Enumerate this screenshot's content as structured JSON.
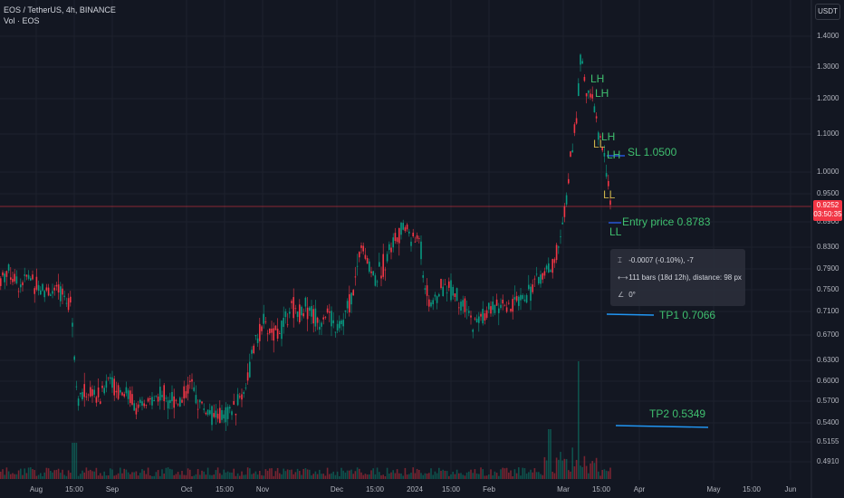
{
  "header": {
    "symbol_line": "EOS / TetherUS, 4h, BINANCE",
    "volume_line": "Vol · EOS",
    "currency_button": "USDT"
  },
  "price_tag": {
    "price": "0.9252",
    "countdown": "03:50:35"
  },
  "annotations": {
    "lh1": "LH",
    "lh2": "LH",
    "lh3": "LH",
    "lh4": "LH",
    "ll1": "LL",
    "ll2": "LL",
    "ll3": "LL",
    "sl": "SL 1.0500",
    "entry": "Entry price 0.8783",
    "tp1": "TP1 0.7066",
    "tp2": "TP2 0.5349"
  },
  "measure_tooltip": {
    "price_change": "-0.0007 (-0.10%), -7",
    "bars": "111 bars (18d 12h), distance: 98 px",
    "angle": "0°"
  },
  "chart_data": {
    "type": "candlestick",
    "symbol": "EOS / TetherUS",
    "interval": "4h",
    "exchange": "BINANCE",
    "y_axis_ticks": [
      "1.4000",
      "1.3000",
      "1.2000",
      "1.1000",
      "1.0000",
      "0.9500",
      "0.8900",
      "0.8300",
      "0.7900",
      "0.7500",
      "0.7100",
      "0.6700",
      "0.6300",
      "0.6000",
      "0.5700",
      "0.5400",
      "0.5155",
      "0.4910"
    ],
    "x_axis_ticks": [
      "Aug",
      "15:00",
      "Sep",
      "Oct",
      "15:00",
      "Nov",
      "Dec",
      "15:00",
      "2024",
      "15:00",
      "Feb",
      "Mar",
      "15:00",
      "Apr",
      "May",
      "15:00",
      "Jun"
    ],
    "current_price": 0.9252,
    "levels": [
      {
        "name": "SL",
        "value": 1.05
      },
      {
        "name": "Entry price",
        "value": 0.8783
      },
      {
        "name": "TP1",
        "value": 0.7066
      },
      {
        "name": "TP2",
        "value": 0.5349
      }
    ],
    "price_path": [
      [
        0,
        0.77
      ],
      [
        8,
        0.79
      ],
      [
        20,
        0.76
      ],
      [
        30,
        0.775
      ],
      [
        40,
        0.76
      ],
      [
        50,
        0.75
      ],
      [
        60,
        0.745
      ],
      [
        70,
        0.74
      ],
      [
        78,
        0.73
      ],
      [
        82,
        0.62
      ],
      [
        86,
        0.575
      ],
      [
        92,
        0.58
      ],
      [
        100,
        0.585
      ],
      [
        110,
        0.575
      ],
      [
        120,
        0.61
      ],
      [
        126,
        0.59
      ],
      [
        135,
        0.585
      ],
      [
        145,
        0.575
      ],
      [
        155,
        0.555
      ],
      [
        160,
        0.565
      ],
      [
        170,
        0.575
      ],
      [
        180,
        0.58
      ],
      [
        190,
        0.575
      ],
      [
        200,
        0.57
      ],
      [
        210,
        0.6
      ],
      [
        215,
        0.575
      ],
      [
        225,
        0.56
      ],
      [
        235,
        0.55
      ],
      [
        245,
        0.548
      ],
      [
        258,
        0.56
      ],
      [
        270,
        0.59
      ],
      [
        280,
        0.65
      ],
      [
        290,
        0.69
      ],
      [
        300,
        0.67
      ],
      [
        310,
        0.68
      ],
      [
        320,
        0.72
      ],
      [
        330,
        0.71
      ],
      [
        340,
        0.72
      ],
      [
        350,
        0.69
      ],
      [
        360,
        0.71
      ],
      [
        370,
        0.68
      ],
      [
        380,
        0.7
      ],
      [
        390,
        0.75
      ],
      [
        398,
        0.84
      ],
      [
        405,
        0.8
      ],
      [
        415,
        0.77
      ],
      [
        425,
        0.81
      ],
      [
        432,
        0.84
      ],
      [
        440,
        0.86
      ],
      [
        448,
        0.88
      ],
      [
        455,
        0.84
      ],
      [
        462,
        0.86
      ],
      [
        466,
        0.79
      ],
      [
        470,
        0.74
      ],
      [
        478,
        0.72
      ],
      [
        485,
        0.75
      ],
      [
        492,
        0.76
      ],
      [
        500,
        0.75
      ],
      [
        508,
        0.72
      ],
      [
        515,
        0.71
      ],
      [
        522,
        0.685
      ],
      [
        530,
        0.7
      ],
      [
        540,
        0.71
      ],
      [
        550,
        0.72
      ],
      [
        560,
        0.71
      ],
      [
        570,
        0.73
      ],
      [
        580,
        0.74
      ],
      [
        590,
        0.76
      ],
      [
        600,
        0.78
      ],
      [
        610,
        0.8
      ],
      [
        618,
        0.84
      ],
      [
        625,
        0.95
      ],
      [
        630,
        1.05
      ],
      [
        636,
        1.15
      ],
      [
        641,
        1.35
      ],
      [
        645,
        1.25
      ],
      [
        650,
        1.2
      ],
      [
        655,
        1.18
      ],
      [
        660,
        1.1
      ],
      [
        665,
        1.05
      ],
      [
        670,
        0.98
      ],
      [
        674,
        0.93
      ]
    ]
  }
}
